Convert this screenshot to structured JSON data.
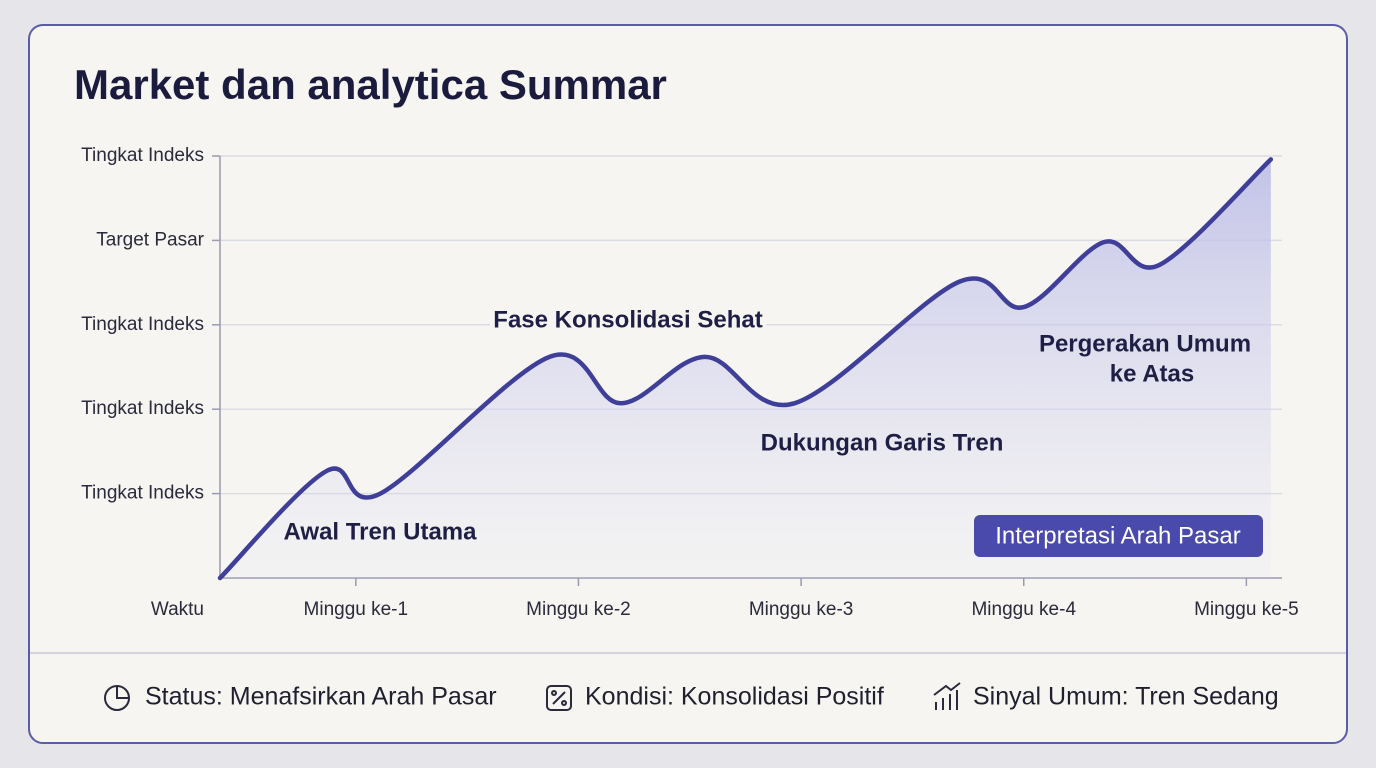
{
  "chart_data": {
    "type": "area",
    "title": "Market dan analytica Summar",
    "xlabel": "Waktu",
    "x": [
      0.39,
      0.87,
      1.11,
      1.87,
      2.19,
      2.57,
      2.97,
      3.71,
      4.0,
      4.36,
      4.61,
      5.11
    ],
    "values": [
      0,
      1.27,
      1.0,
      2.62,
      2.07,
      2.62,
      2.07,
      3.51,
      3.21,
      3.98,
      3.71,
      4.96
    ],
    "color": "#3f3f9a",
    "xlim": [
      0.39,
      5.16
    ],
    "ylim": [
      0,
      5
    ],
    "xticks": [
      {
        "value": 1,
        "label": "Minggu ke-1"
      },
      {
        "value": 2,
        "label": "Minggu ke-2"
      },
      {
        "value": 3,
        "label": "Minggu ke-3"
      },
      {
        "value": 4,
        "label": "Minggu ke-4"
      },
      {
        "value": 5,
        "label": "Minggu ke-5"
      }
    ],
    "yticks": [
      {
        "value": 1,
        "label": "Tingkat Indeks"
      },
      {
        "value": 2,
        "label": "Tingkat Indeks"
      },
      {
        "value": 3,
        "label": "Tingkat Indeks"
      },
      {
        "value": 4,
        "label": "Target Pasar"
      },
      {
        "value": 5,
        "label": "Tingkat Indeks"
      }
    ],
    "grid": true,
    "annotations": [
      "Awal Tren Utama",
      "Fase Konsolidasi Sehat",
      "Dukungan Garis Tren",
      "Pergerakan Umum",
      "ke Atas"
    ],
    "badge": "Interpretasi Arah Pasar"
  },
  "footer": [
    "Status: Menafsirkan Arah Pasar",
    "Kondisi: Konsolidasi Positif",
    "Sinyal Umum: Tren Sedang"
  ]
}
